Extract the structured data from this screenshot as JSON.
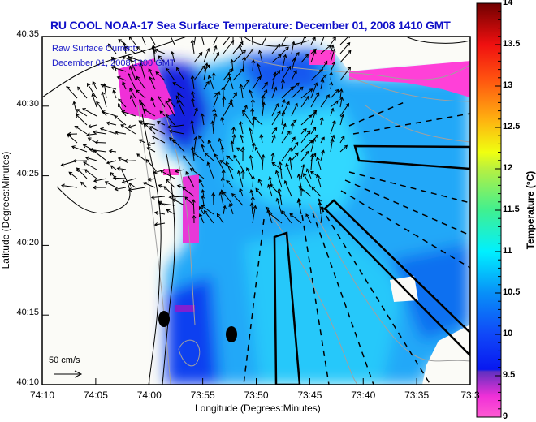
{
  "title": "RU COOL  NOAA-17  Sea Surface Temperature:  December 01, 2008 1410 GMT",
  "overlay": {
    "line1": "Raw Surface Current:",
    "line2": "December 01, 2008 1300 GMT"
  },
  "scale_label": "50 cm/s",
  "axes": {
    "xlabel": "Longitude (Degrees:Minutes)",
    "ylabel": "Latitude (Degrees:Minutes)",
    "lon_ticks": [
      "74:10",
      "74:05",
      "74:00",
      "73:55",
      "73:50",
      "73:45",
      "73:40",
      "73:35",
      "73:3"
    ],
    "lat_ticks": [
      "40:35",
      "40:30",
      "40:25",
      "40:20",
      "40:15",
      "40:10"
    ]
  },
  "colorbar": {
    "label": "Temperature (°C)",
    "min": 9,
    "max": 14,
    "ticks": [
      "14",
      "13.5",
      "13",
      "12.5",
      "12",
      "11.5",
      "11",
      "10.5",
      "10",
      "9.5",
      "9"
    ]
  },
  "colors": {
    "title": "#1010c8",
    "land": "#fbfbf7",
    "sst_cold": "#ff33cc",
    "sst_mid": "#1030f0",
    "sst_warm": "#00c8ff"
  }
}
